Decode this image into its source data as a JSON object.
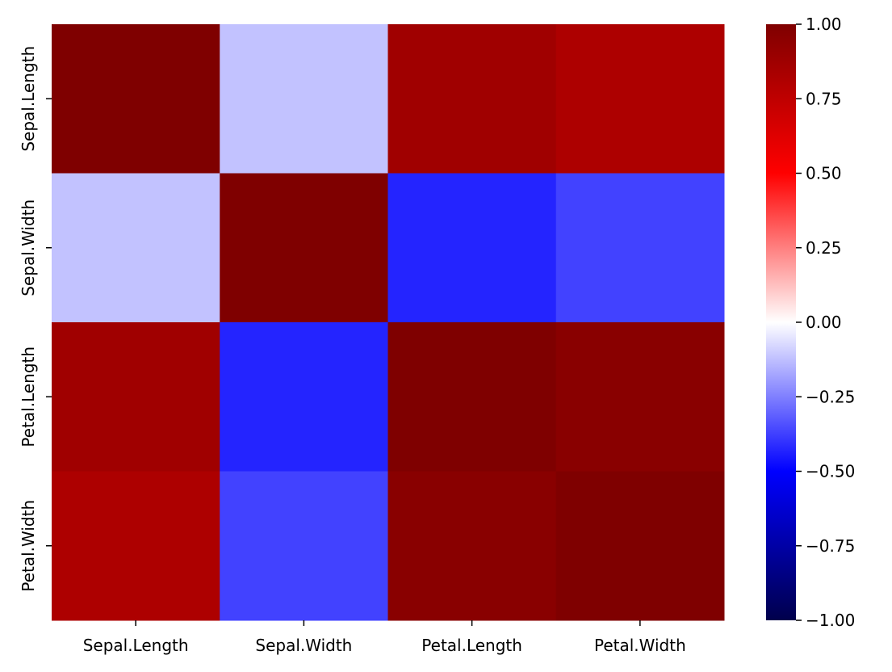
{
  "chart_data": {
    "type": "heatmap",
    "title": "",
    "xlabel": "",
    "ylabel": "",
    "x_categories": [
      "Sepal.Length",
      "Sepal.Width",
      "Petal.Length",
      "Petal.Width"
    ],
    "y_categories": [
      "Sepal.Length",
      "Sepal.Width",
      "Petal.Length",
      "Petal.Width"
    ],
    "values": [
      [
        1.0,
        -0.12,
        0.87,
        0.82
      ],
      [
        -0.12,
        1.0,
        -0.43,
        -0.37
      ],
      [
        0.87,
        -0.43,
        1.0,
        0.96
      ],
      [
        0.82,
        -0.37,
        0.96,
        1.0
      ]
    ],
    "colorscale": "seismic",
    "vmin": -1.0,
    "vmax": 1.0,
    "colorbar_ticks": [
      {
        "value": 1.0,
        "label": "1.00"
      },
      {
        "value": 0.75,
        "label": "0.75"
      },
      {
        "value": 0.5,
        "label": "0.50"
      },
      {
        "value": 0.25,
        "label": "0.25"
      },
      {
        "value": 0.0,
        "label": "0.00"
      },
      {
        "value": -0.25,
        "label": "−0.25"
      },
      {
        "value": -0.5,
        "label": "−0.50"
      },
      {
        "value": -0.75,
        "label": "−0.75"
      },
      {
        "value": -1.0,
        "label": "−1.00"
      }
    ],
    "grid": false,
    "colorbar_position": "right"
  }
}
